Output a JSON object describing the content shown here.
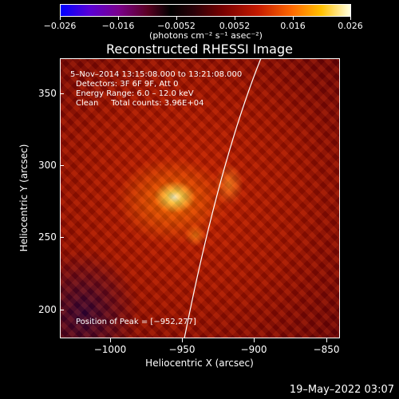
{
  "colorbar": {
    "ticks": [
      "−0.026",
      "−0.016",
      "−0.0052",
      "0.0052",
      "0.016",
      "0.026"
    ],
    "units": "(photons cm⁻² s⁻¹ asec⁻²)"
  },
  "title": "Reconstructed RHESSI Image",
  "annotations": {
    "time": "5–Nov–2014 13:15:08.000 to 13:21:08.000",
    "detectors": "Detectors: 3F 6F 9F, Att 0",
    "energy": "Energy Range: 6.0 – 12.0 keV",
    "clean": "Clean     Total counts: 3.96E+04",
    "peak": "Position of Peak = [−952,277]"
  },
  "axes": {
    "x_label": "Heliocentric X (arcsec)",
    "y_label": "Heliocentric Y (arcsec)",
    "x_ticks": [
      "−1000",
      "−950",
      "−900",
      "−850"
    ],
    "y_ticks": [
      "350",
      "300",
      "250",
      "200"
    ]
  },
  "timestamp": "19–May–2022 03:07"
}
